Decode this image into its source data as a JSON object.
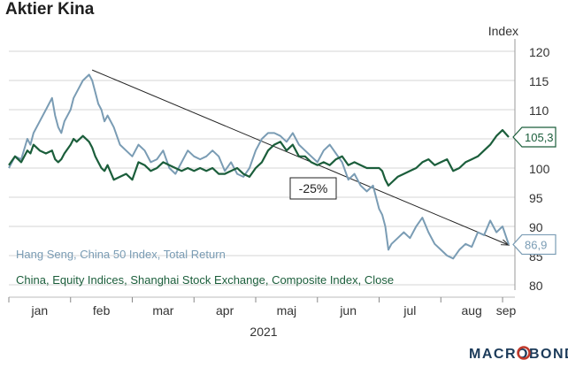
{
  "title": "Aktier Kina",
  "brand": {
    "text": "MACROBOND",
    "colors": [
      "#c0392b",
      "#1c3b5a"
    ]
  },
  "annotations": {
    "drop_text": "-25%"
  },
  "chart_data": {
    "type": "line",
    "title": "Aktier Kina",
    "ylabel": "Index",
    "xlabel": "2021",
    "ylim": [
      80,
      120
    ],
    "yticks": [
      80,
      85,
      90,
      95,
      100,
      105,
      110,
      115,
      120
    ],
    "ytick_labels": [
      "80",
      "85",
      "90",
      "95",
      "100",
      "105",
      "110",
      "115",
      "120"
    ],
    "xlim": [
      0,
      8.2
    ],
    "xticks": [
      0.5,
      1.5,
      2.5,
      3.5,
      4.5,
      5.5,
      6.5,
      7.5,
      8.5
    ],
    "xtick_labels": [
      "jan",
      "feb",
      "mar",
      "apr",
      "maj",
      "jun",
      "jul",
      "aug",
      "sep"
    ],
    "month_boundaries": [
      0,
      1,
      2,
      3,
      4,
      5,
      6,
      7,
      8
    ],
    "grid": true,
    "series": [
      {
        "name": "Hang Seng, China 50 Index, Total Return",
        "color": "#7a9cb4",
        "end_label": "86,9",
        "x": [
          0,
          0.1,
          0.2,
          0.3,
          0.35,
          0.4,
          0.5,
          0.6,
          0.7,
          0.75,
          0.8,
          0.85,
          0.9,
          1.0,
          1.05,
          1.1,
          1.2,
          1.3,
          1.35,
          1.4,
          1.45,
          1.5,
          1.55,
          1.6,
          1.7,
          1.8,
          1.9,
          2.0,
          2.1,
          2.2,
          2.3,
          2.4,
          2.5,
          2.6,
          2.7,
          2.8,
          2.9,
          3.0,
          3.1,
          3.2,
          3.3,
          3.4,
          3.5,
          3.6,
          3.7,
          3.8,
          3.9,
          4.0,
          4.1,
          4.2,
          4.3,
          4.4,
          4.5,
          4.6,
          4.7,
          4.8,
          4.9,
          5.0,
          5.1,
          5.2,
          5.3,
          5.4,
          5.5,
          5.6,
          5.7,
          5.8,
          5.9,
          6.0,
          6.05,
          6.1,
          6.15,
          6.2,
          6.3,
          6.4,
          6.5,
          6.6,
          6.7,
          6.8,
          6.9,
          7.0,
          7.1,
          7.2,
          7.3,
          7.4,
          7.5,
          7.6,
          7.7,
          7.8,
          7.9,
          8.0,
          8.1
        ],
        "y": [
          100,
          102,
          101.5,
          105,
          104,
          106,
          108,
          110,
          112,
          109,
          107,
          106,
          108,
          110,
          112,
          113,
          115,
          116,
          115,
          113,
          111,
          110,
          108,
          109,
          107,
          104,
          103,
          102,
          104,
          103,
          101,
          101.5,
          103,
          100,
          99,
          101,
          103,
          102,
          101.5,
          102,
          103,
          102,
          99.5,
          101,
          99,
          98.5,
          100,
          103,
          105,
          106,
          106,
          105.5,
          104.5,
          106,
          104,
          103,
          102,
          101,
          103,
          104,
          102.5,
          101,
          98,
          99,
          97,
          96,
          97,
          93,
          92,
          90,
          86,
          87,
          88,
          89,
          88,
          90,
          91.5,
          89,
          87,
          86,
          85,
          84.5,
          86,
          87,
          86.5,
          89,
          88.5,
          91,
          89,
          90,
          86.9
        ]
      },
      {
        "name": "China, Equity Indices, Shanghai Stock Exchange, Composite Index, Close",
        "color": "#1b5e3b",
        "end_label": "105,3",
        "x": [
          0,
          0.1,
          0.2,
          0.3,
          0.35,
          0.4,
          0.5,
          0.6,
          0.7,
          0.75,
          0.8,
          0.85,
          0.9,
          1.0,
          1.05,
          1.1,
          1.2,
          1.3,
          1.35,
          1.4,
          1.45,
          1.5,
          1.55,
          1.6,
          1.7,
          1.8,
          1.9,
          2.0,
          2.1,
          2.2,
          2.3,
          2.4,
          2.5,
          2.6,
          2.7,
          2.8,
          2.9,
          3.0,
          3.1,
          3.2,
          3.3,
          3.4,
          3.5,
          3.6,
          3.7,
          3.8,
          3.9,
          4.0,
          4.1,
          4.2,
          4.3,
          4.4,
          4.5,
          4.6,
          4.7,
          4.8,
          4.9,
          5.0,
          5.1,
          5.2,
          5.3,
          5.4,
          5.5,
          5.6,
          5.7,
          5.8,
          5.9,
          6.0,
          6.05,
          6.1,
          6.15,
          6.2,
          6.3,
          6.4,
          6.5,
          6.6,
          6.7,
          6.8,
          6.9,
          7.0,
          7.1,
          7.2,
          7.3,
          7.4,
          7.5,
          7.6,
          7.7,
          7.8,
          7.9,
          8.0,
          8.1
        ],
        "y": [
          100.5,
          102,
          101,
          103,
          102.5,
          104,
          103,
          102.5,
          103,
          101.5,
          101,
          101.5,
          102.5,
          104,
          105,
          104.5,
          105.5,
          104.5,
          103.5,
          102,
          101,
          100,
          99.5,
          100.5,
          98,
          98.5,
          99,
          98,
          101,
          100.5,
          99.5,
          100,
          101,
          100.5,
          100,
          99.5,
          100,
          99.5,
          100,
          99.5,
          100,
          99,
          99,
          99.5,
          100,
          99,
          98.5,
          100,
          101,
          103,
          104,
          104.5,
          103,
          104,
          102,
          102,
          101,
          100.5,
          101,
          100.5,
          101.5,
          102,
          100.5,
          101,
          100.5,
          100,
          100,
          100,
          99.5,
          98,
          97,
          97.5,
          98.5,
          99,
          99.5,
          100,
          101,
          101.5,
          100.5,
          101,
          101.5,
          99.5,
          100,
          101,
          101.5,
          102,
          103,
          104,
          105.5,
          106.5,
          105.3
        ]
      }
    ],
    "trend_line": {
      "from": [
        1.35,
        116.8
      ],
      "to": [
        8.1,
        86.8
      ]
    }
  }
}
